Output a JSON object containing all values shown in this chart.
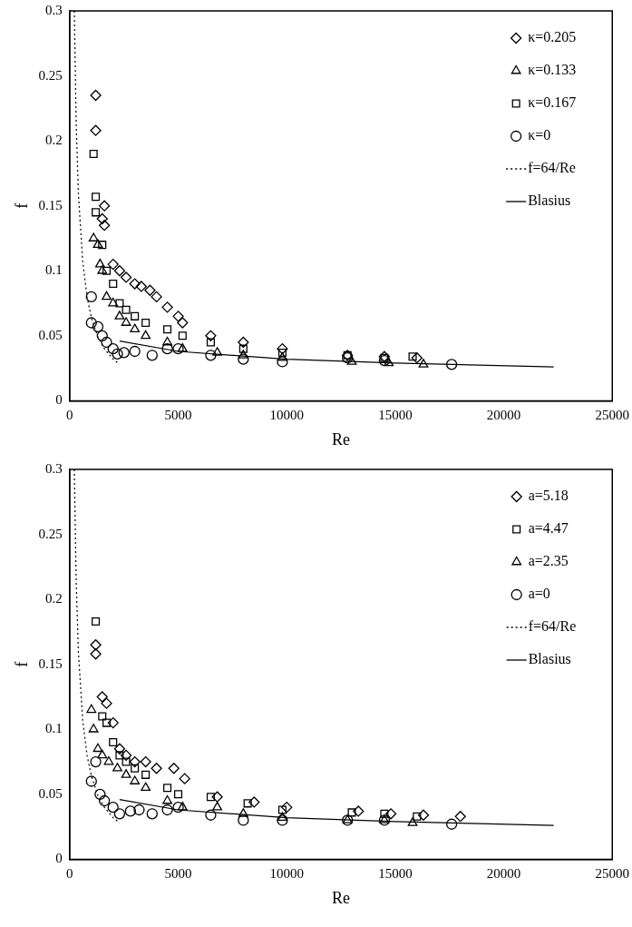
{
  "chart_data": [
    {
      "type": "scatter",
      "xlabel": "Re",
      "ylabel": "f",
      "xlim": [
        0,
        25000
      ],
      "ylim": [
        0,
        0.3
      ],
      "xticks": [
        0,
        5000,
        10000,
        15000,
        20000,
        25000
      ],
      "yticks": [
        0,
        0.05,
        0.1,
        0.15,
        0.2,
        0.25,
        0.3
      ],
      "grid": false,
      "legend": "top right",
      "series": [
        {
          "name": "κ=0.205",
          "color": "#000000",
          "marker": "diamond",
          "x": [
            1200,
            1200,
            1500,
            1600,
            1600,
            2000,
            2300,
            2600,
            3000,
            3300,
            3700,
            4000,
            4500,
            5000,
            5200,
            6500,
            8000,
            9800,
            12800,
            14500,
            16000
          ],
          "values": [
            0.235,
            0.208,
            0.14,
            0.15,
            0.135,
            0.105,
            0.1,
            0.095,
            0.09,
            0.088,
            0.085,
            0.08,
            0.072,
            0.065,
            0.06,
            0.05,
            0.045,
            0.04,
            0.035,
            0.034,
            0.033
          ]
        },
        {
          "name": "κ=0.133",
          "color": "#000000",
          "marker": "triangle",
          "x": [
            1100,
            1300,
            1400,
            1500,
            1700,
            2000,
            2300,
            2600,
            3000,
            3500,
            4500,
            5200,
            6800,
            8000,
            9800,
            13000,
            14700,
            16300
          ],
          "values": [
            0.125,
            0.12,
            0.105,
            0.1,
            0.08,
            0.075,
            0.065,
            0.06,
            0.055,
            0.05,
            0.045,
            0.04,
            0.037,
            0.035,
            0.033,
            0.03,
            0.029,
            0.028
          ]
        },
        {
          "name": "κ=0.167",
          "color": "#000000",
          "marker": "square",
          "x": [
            1100,
            1200,
            1200,
            1500,
            1700,
            2000,
            2300,
            2600,
            3000,
            3500,
            4500,
            5200,
            6500,
            8000,
            9800,
            12800,
            14500,
            15800
          ],
          "values": [
            0.19,
            0.157,
            0.145,
            0.12,
            0.1,
            0.09,
            0.075,
            0.07,
            0.065,
            0.06,
            0.055,
            0.05,
            0.045,
            0.04,
            0.037,
            0.035,
            0.033,
            0.034
          ]
        },
        {
          "name": "κ=0",
          "color": "#000000",
          "marker": "circle",
          "x": [
            1000,
            1000,
            1300,
            1500,
            1700,
            2000,
            2200,
            2500,
            3000,
            3800,
            4500,
            5000,
            6500,
            8000,
            9800,
            12800,
            14500,
            17600
          ],
          "values": [
            0.08,
            0.06,
            0.057,
            0.05,
            0.045,
            0.04,
            0.036,
            0.037,
            0.038,
            0.035,
            0.04,
            0.04,
            0.035,
            0.032,
            0.03,
            0.033,
            0.031,
            0.028
          ]
        },
        {
          "name": "f=64/Re",
          "type": "line",
          "color": "#000000",
          "marker": "none",
          "line_style": "dotted",
          "x": [
            213,
            300,
            400,
            600,
            800,
            1000,
            1300,
            1600,
            2000,
            2300
          ],
          "values": [
            0.3,
            0.213,
            0.16,
            0.107,
            0.08,
            0.064,
            0.049,
            0.04,
            0.032,
            0.028
          ]
        },
        {
          "name": "Blasius",
          "type": "line",
          "color": "#000000",
          "marker": "none",
          "line_style": "solid",
          "x": [
            2300,
            5000,
            10000,
            15000,
            22300
          ],
          "values": [
            0.046,
            0.038,
            0.032,
            0.029,
            0.026
          ]
        }
      ]
    },
    {
      "type": "scatter",
      "xlabel": "Re",
      "ylabel": "f",
      "xlim": [
        0,
        25000
      ],
      "ylim": [
        0,
        0.3
      ],
      "xticks": [
        0,
        5000,
        10000,
        15000,
        20000,
        25000
      ],
      "yticks": [
        0,
        0.05,
        0.1,
        0.15,
        0.2,
        0.25,
        0.3
      ],
      "grid": false,
      "legend": "top right",
      "series": [
        {
          "name": "a=5.18",
          "color": "#000000",
          "marker": "diamond",
          "x": [
            1200,
            1200,
            1500,
            1700,
            2000,
            2300,
            2600,
            3000,
            3500,
            4000,
            4800,
            5300,
            6800,
            8500,
            10000,
            13300,
            14800,
            16300,
            18000
          ],
          "values": [
            0.165,
            0.158,
            0.125,
            0.12,
            0.105,
            0.085,
            0.08,
            0.075,
            0.075,
            0.07,
            0.07,
            0.062,
            0.048,
            0.044,
            0.04,
            0.037,
            0.035,
            0.034,
            0.033
          ]
        },
        {
          "name": "a=4.47",
          "color": "#000000",
          "marker": "square",
          "x": [
            1200,
            1500,
            1700,
            2000,
            2300,
            2600,
            3000,
            3500,
            4500,
            5000,
            6500,
            8200,
            9800,
            13000,
            14500,
            16000
          ],
          "values": [
            0.183,
            0.11,
            0.105,
            0.09,
            0.08,
            0.075,
            0.07,
            0.065,
            0.055,
            0.05,
            0.048,
            0.043,
            0.038,
            0.036,
            0.035,
            0.033
          ]
        },
        {
          "name": "a=2.35",
          "color": "#000000",
          "marker": "triangle",
          "x": [
            1000,
            1100,
            1300,
            1500,
            1800,
            2200,
            2600,
            3000,
            3500,
            4500,
            5200,
            6800,
            8000,
            9800,
            12800,
            14500,
            15800
          ],
          "values": [
            0.115,
            0.1,
            0.085,
            0.08,
            0.075,
            0.07,
            0.065,
            0.06,
            0.055,
            0.045,
            0.04,
            0.04,
            0.035,
            0.032,
            0.03,
            0.03,
            0.028
          ]
        },
        {
          "name": "a=0",
          "color": "#000000",
          "marker": "circle",
          "x": [
            1000,
            1200,
            1400,
            1600,
            2000,
            2300,
            2800,
            3200,
            3800,
            4500,
            5000,
            6500,
            8000,
            9800,
            12800,
            14500,
            17600
          ],
          "values": [
            0.06,
            0.075,
            0.05,
            0.045,
            0.04,
            0.035,
            0.037,
            0.038,
            0.035,
            0.038,
            0.04,
            0.034,
            0.03,
            0.03,
            0.03,
            0.03,
            0.027
          ]
        },
        {
          "name": "f=64/Re",
          "type": "line",
          "color": "#000000",
          "marker": "none",
          "line_style": "dotted",
          "x": [
            213,
            300,
            400,
            600,
            800,
            1000,
            1300,
            1600,
            2000,
            2300
          ],
          "values": [
            0.3,
            0.213,
            0.16,
            0.107,
            0.08,
            0.064,
            0.049,
            0.04,
            0.032,
            0.028
          ]
        },
        {
          "name": "Blasius",
          "type": "line",
          "color": "#000000",
          "marker": "none",
          "line_style": "solid",
          "x": [
            2300,
            5000,
            10000,
            15000,
            22300
          ],
          "values": [
            0.046,
            0.038,
            0.032,
            0.029,
            0.026
          ]
        }
      ]
    }
  ]
}
